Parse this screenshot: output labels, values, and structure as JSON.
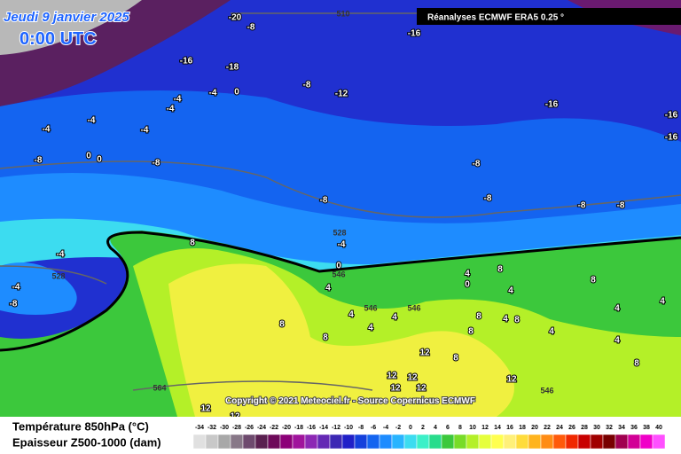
{
  "header": {
    "date": "Jeudi 9 janvier 2025",
    "time": "0:00 UTC",
    "source": "Réanalyses ECMWF ERA5 0.25 °",
    "copyright": "Copyright © 2021 Meteociel.fr - Source Copernicus ECMWF"
  },
  "legend": {
    "temperature_title": "Température 850hPa (°C)",
    "thickness_title": "Epaisseur Z500-1000 (dam)",
    "scale": [
      -34,
      -32,
      -30,
      -28,
      -26,
      -24,
      -22,
      -20,
      -18,
      -16,
      -14,
      -12,
      -10,
      -8,
      -6,
      -4,
      -2,
      0,
      2,
      4,
      6,
      8,
      10,
      12,
      14,
      16,
      18,
      20,
      22,
      24,
      26,
      28,
      30,
      32,
      34,
      36,
      38,
      40
    ],
    "colors": [
      "#e0e0e0",
      "#c8c8c8",
      "#a8a8a8",
      "#887888",
      "#6e4a6e",
      "#5a2050",
      "#6e0a5a",
      "#8c0078",
      "#a0149c",
      "#8c28b4",
      "#6428b4",
      "#3c28b4",
      "#2020c8",
      "#1440dc",
      "#1464f0",
      "#1e8cff",
      "#28b4ff",
      "#3cdcf0",
      "#3cf0c8",
      "#28dc8c",
      "#3cc83c",
      "#78dc28",
      "#b4f028",
      "#e6ff3c",
      "#ffff50",
      "#fff078",
      "#ffdc3c",
      "#ffb41e",
      "#ff8c14",
      "#ff5a0a",
      "#f02800",
      "#c80000",
      "#a00000",
      "#780000",
      "#a00050",
      "#d20096",
      "#f000c8",
      "#ff50ff"
    ]
  },
  "temperatures": [
    -20,
    -8,
    -16,
    -16,
    -18,
    -8,
    -12,
    -4,
    0,
    -4,
    -4,
    -4,
    -4,
    -4,
    -8,
    0,
    0,
    -8,
    -16,
    -16,
    -16,
    -8,
    -8,
    -8,
    -8,
    -8,
    -4,
    -4,
    0,
    -4,
    -8,
    8,
    4,
    4,
    4,
    4,
    4,
    0,
    8,
    4,
    8,
    4,
    4,
    8,
    4,
    8,
    8,
    8,
    8,
    4,
    4,
    12,
    12,
    12,
    12,
    12,
    8,
    8,
    12,
    12,
    12
  ],
  "thickness": [
    510,
    528,
    528,
    546,
    546,
    546,
    564,
    546
  ]
}
